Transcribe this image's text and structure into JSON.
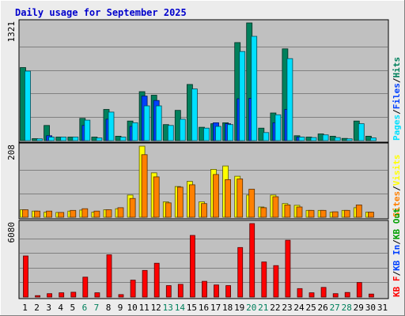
{
  "chart_data": {
    "type": "bar",
    "title": "Daily usage for September 2025",
    "title_color": "#0000cc",
    "background": "#c0c0c0",
    "days": [
      "1",
      "2",
      "3",
      "4",
      "5",
      "6",
      "7",
      "8",
      "9",
      "10",
      "11",
      "12",
      "13",
      "14",
      "15",
      "16",
      "17",
      "18",
      "19",
      "20",
      "21",
      "22",
      "23",
      "24",
      "25",
      "26",
      "27",
      "28",
      "29",
      "30",
      "31"
    ],
    "weekend_days": [
      "6",
      "7",
      "13",
      "14",
      "20",
      "21",
      "27",
      "28"
    ],
    "day_label_color": "#000000",
    "weekend_label_color": "#00805c",
    "panels": [
      {
        "key": "hits",
        "ymax_label": "1321",
        "ymax": 1321,
        "series": [
          {
            "name": "Hits",
            "color": "#00805c",
            "values": [
              820,
              22,
              170,
              40,
              40,
              250,
              40,
              350,
              50,
              220,
              550,
              510,
              180,
              340,
              630,
              150,
              190,
              200,
              1100,
              1321,
              140,
              310,
              1030,
              55,
              40,
              75,
              50,
              25,
              220,
              50,
              0
            ]
          },
          {
            "name": "Files",
            "color": "#0040ff",
            "values": [
              0,
              0,
              55,
              0,
              0,
              170,
              0,
              240,
              0,
              160,
              500,
              450,
              0,
              0,
              0,
              0,
              200,
              190,
              470,
              475,
              0,
              200,
              350,
              40,
              0,
              0,
              0,
              0,
              0,
              0,
              0
            ]
          },
          {
            "name": "Pages",
            "color": "#00e0ff",
            "values": [
              780,
              20,
              40,
              40,
              40,
              230,
              30,
              320,
              40,
              200,
              390,
              390,
              170,
              240,
              580,
              140,
              160,
              180,
              1000,
              1170,
              90,
              290,
              920,
              40,
              35,
              65,
              35,
              20,
              190,
              30,
              0
            ]
          }
        ],
        "axis_labels": [
          {
            "text": "Pages",
            "color": "#00e0ff"
          },
          {
            "text": "/",
            "color": "#000000"
          },
          {
            "text": "Files",
            "color": "#0040ff"
          },
          {
            "text": "/",
            "color": "#000000"
          },
          {
            "text": "Hits",
            "color": "#00805c"
          }
        ]
      },
      {
        "key": "sites",
        "ymax_label": "208",
        "ymax": 208,
        "series": [
          {
            "name": "Visits",
            "color": "#ffff00",
            "values": [
              22,
              18,
              15,
              14,
              18,
              21,
              15,
              22,
              25,
              65,
              208,
              130,
              45,
              90,
              105,
              45,
              140,
              150,
              120,
              65,
              30,
              65,
              40,
              35,
              20,
              20,
              15,
              20,
              28,
              15,
              0
            ]
          },
          {
            "name": "Sites",
            "color": "#ff8000",
            "values": [
              22,
              18,
              18,
              14,
              20,
              25,
              18,
              22,
              28,
              55,
              183,
              118,
              42,
              88,
              95,
              40,
              125,
              110,
              112,
              82,
              28,
              60,
              36,
              30,
              20,
              20,
              16,
              20,
              36,
              15,
              0
            ]
          }
        ],
        "axis_labels": [
          {
            "text": "Sites",
            "color": "#ff8000"
          },
          {
            "text": "/",
            "color": "#000000"
          },
          {
            "text": "Visits",
            "color": "#ffff00"
          }
        ]
      },
      {
        "key": "kbytes",
        "ymax_label": "6080",
        "ymax": 6080,
        "series": [
          {
            "name": "KB F",
            "color": "#ff0000",
            "values": [
              3400,
              120,
              280,
              350,
              400,
              1650,
              350,
              3500,
              200,
              1400,
              2200,
              2800,
              950,
              1050,
              5100,
              1300,
              1000,
              950,
              4100,
              6080,
              2900,
              2600,
              4700,
              700,
              350,
              800,
              280,
              380,
              1200,
              250,
              0
            ]
          }
        ],
        "axis_labels": [
          {
            "text": "KB F",
            "color": "#ff0000"
          },
          {
            "text": "/",
            "color": "#000000"
          },
          {
            "text": "KB In",
            "color": "#0040ff"
          },
          {
            "text": "/",
            "color": "#000000"
          },
          {
            "text": "KB Out",
            "color": "#00a000"
          }
        ]
      }
    ]
  }
}
